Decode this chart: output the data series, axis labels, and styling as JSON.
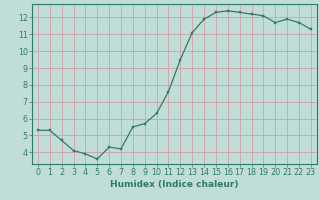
{
  "x": [
    0,
    1,
    2,
    3,
    4,
    5,
    6,
    7,
    8,
    9,
    10,
    11,
    12,
    13,
    14,
    15,
    16,
    17,
    18,
    19,
    20,
    21,
    22,
    23
  ],
  "y": [
    5.3,
    5.3,
    4.7,
    4.1,
    3.9,
    3.6,
    4.3,
    4.2,
    5.5,
    5.7,
    6.3,
    7.6,
    9.5,
    11.1,
    11.9,
    12.3,
    12.4,
    12.3,
    12.2,
    12.1,
    11.7,
    11.9,
    11.7,
    11.3
  ],
  "line_color": "#2e7b6c",
  "marker_color": "#2e7b6c",
  "bg_color": "#c0ddd8",
  "grid_color": "#d4a0a8",
  "axis_color": "#2e7b6c",
  "tick_color": "#2e7b6c",
  "xlabel": "Humidex (Indice chaleur)",
  "ylim": [
    3.3,
    12.8
  ],
  "xlim": [
    -0.5,
    23.5
  ],
  "yticks": [
    4,
    5,
    6,
    7,
    8,
    9,
    10,
    11,
    12
  ],
  "xticks": [
    0,
    1,
    2,
    3,
    4,
    5,
    6,
    7,
    8,
    9,
    10,
    11,
    12,
    13,
    14,
    15,
    16,
    17,
    18,
    19,
    20,
    21,
    22,
    23
  ],
  "label_fontsize": 6.5,
  "tick_fontsize": 5.8,
  "marker_size": 2.0,
  "line_width": 0.9
}
